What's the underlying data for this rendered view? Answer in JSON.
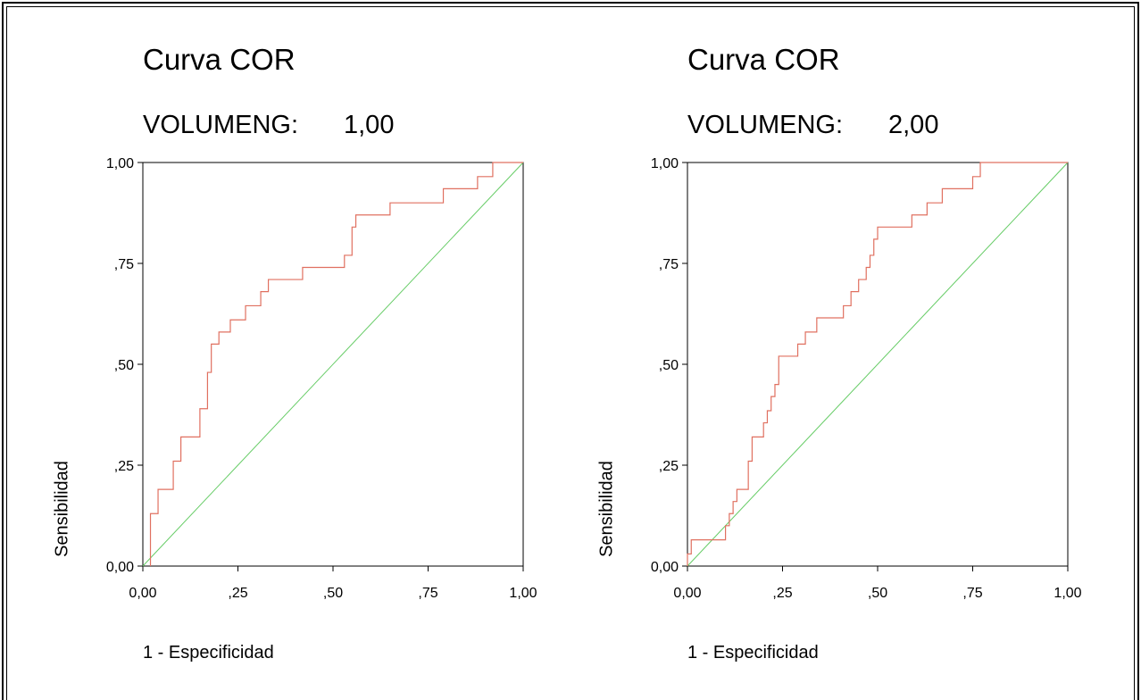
{
  "chart_data": [
    {
      "type": "line",
      "title": "Curva COR",
      "subtitle_label": "VOLUMENG:",
      "subtitle_value": "1,00",
      "xlabel": "1 - Especificidad",
      "ylabel": "Sensibilidad",
      "xlim": [
        0,
        1
      ],
      "ylim": [
        0,
        1
      ],
      "x_ticks": [
        "0,00",
        ",25",
        ",50",
        ",75",
        "1,00"
      ],
      "y_ticks": [
        "0,00",
        ",25",
        ",50",
        ",75",
        "1,00"
      ],
      "colors": {
        "roc": "#e07060",
        "reference": "#66cc66"
      },
      "series": [
        {
          "x": [
            0.02,
            0.02,
            0.04,
            0.04,
            0.08,
            0.08,
            0.1,
            0.1,
            0.15,
            0.15,
            0.17,
            0.17,
            0.18,
            0.18,
            0.2,
            0.2,
            0.23,
            0.23,
            0.27,
            0.27,
            0.31,
            0.31,
            0.33,
            0.33,
            0.42,
            0.42,
            0.53,
            0.53,
            0.55,
            0.55,
            0.56,
            0.56,
            0.65,
            0.65,
            0.79,
            0.79,
            0.88,
            0.88,
            0.92,
            0.92,
            1.0
          ],
          "y": [
            0.0,
            0.13,
            0.13,
            0.19,
            0.19,
            0.26,
            0.26,
            0.32,
            0.32,
            0.39,
            0.39,
            0.48,
            0.48,
            0.55,
            0.55,
            0.58,
            0.58,
            0.61,
            0.61,
            0.645,
            0.645,
            0.68,
            0.68,
            0.71,
            0.71,
            0.74,
            0.74,
            0.77,
            0.77,
            0.84,
            0.84,
            0.87,
            0.87,
            0.9,
            0.9,
            0.935,
            0.935,
            0.965,
            0.965,
            1.0,
            1.0
          ]
        },
        {
          "x": [
            0,
            1
          ],
          "y": [
            0,
            1
          ]
        }
      ]
    },
    {
      "type": "line",
      "title": "Curva COR",
      "subtitle_label": "VOLUMENG:",
      "subtitle_value": "2,00",
      "xlabel": "1 - Especificidad",
      "ylabel": "Sensibilidad",
      "xlim": [
        0,
        1
      ],
      "ylim": [
        0,
        1
      ],
      "x_ticks": [
        "0,00",
        ",25",
        ",50",
        ",75",
        "1,00"
      ],
      "y_ticks": [
        "0,00",
        ",25",
        ",50",
        ",75",
        "1,00"
      ],
      "colors": {
        "roc": "#e07060",
        "reference": "#66cc66"
      },
      "series": [
        {
          "x": [
            0.0,
            0.0,
            0.01,
            0.01,
            0.1,
            0.1,
            0.11,
            0.11,
            0.12,
            0.12,
            0.13,
            0.13,
            0.16,
            0.16,
            0.17,
            0.17,
            0.2,
            0.2,
            0.21,
            0.21,
            0.22,
            0.22,
            0.23,
            0.23,
            0.24,
            0.24,
            0.29,
            0.29,
            0.31,
            0.31,
            0.34,
            0.34,
            0.41,
            0.41,
            0.43,
            0.43,
            0.45,
            0.45,
            0.47,
            0.47,
            0.48,
            0.48,
            0.49,
            0.49,
            0.5,
            0.5,
            0.59,
            0.59,
            0.63,
            0.63,
            0.67,
            0.67,
            0.75,
            0.75,
            0.77,
            0.77,
            1.0
          ],
          "y": [
            0.0,
            0.03,
            0.03,
            0.065,
            0.065,
            0.1,
            0.1,
            0.13,
            0.13,
            0.16,
            0.16,
            0.19,
            0.19,
            0.26,
            0.26,
            0.32,
            0.32,
            0.355,
            0.355,
            0.385,
            0.385,
            0.42,
            0.42,
            0.45,
            0.45,
            0.52,
            0.52,
            0.55,
            0.55,
            0.58,
            0.58,
            0.615,
            0.615,
            0.645,
            0.645,
            0.68,
            0.68,
            0.71,
            0.71,
            0.74,
            0.74,
            0.77,
            0.77,
            0.81,
            0.81,
            0.84,
            0.84,
            0.87,
            0.87,
            0.9,
            0.9,
            0.935,
            0.935,
            0.965,
            0.965,
            1.0,
            1.0
          ]
        },
        {
          "x": [
            0,
            1
          ],
          "y": [
            0,
            1
          ]
        }
      ]
    }
  ]
}
